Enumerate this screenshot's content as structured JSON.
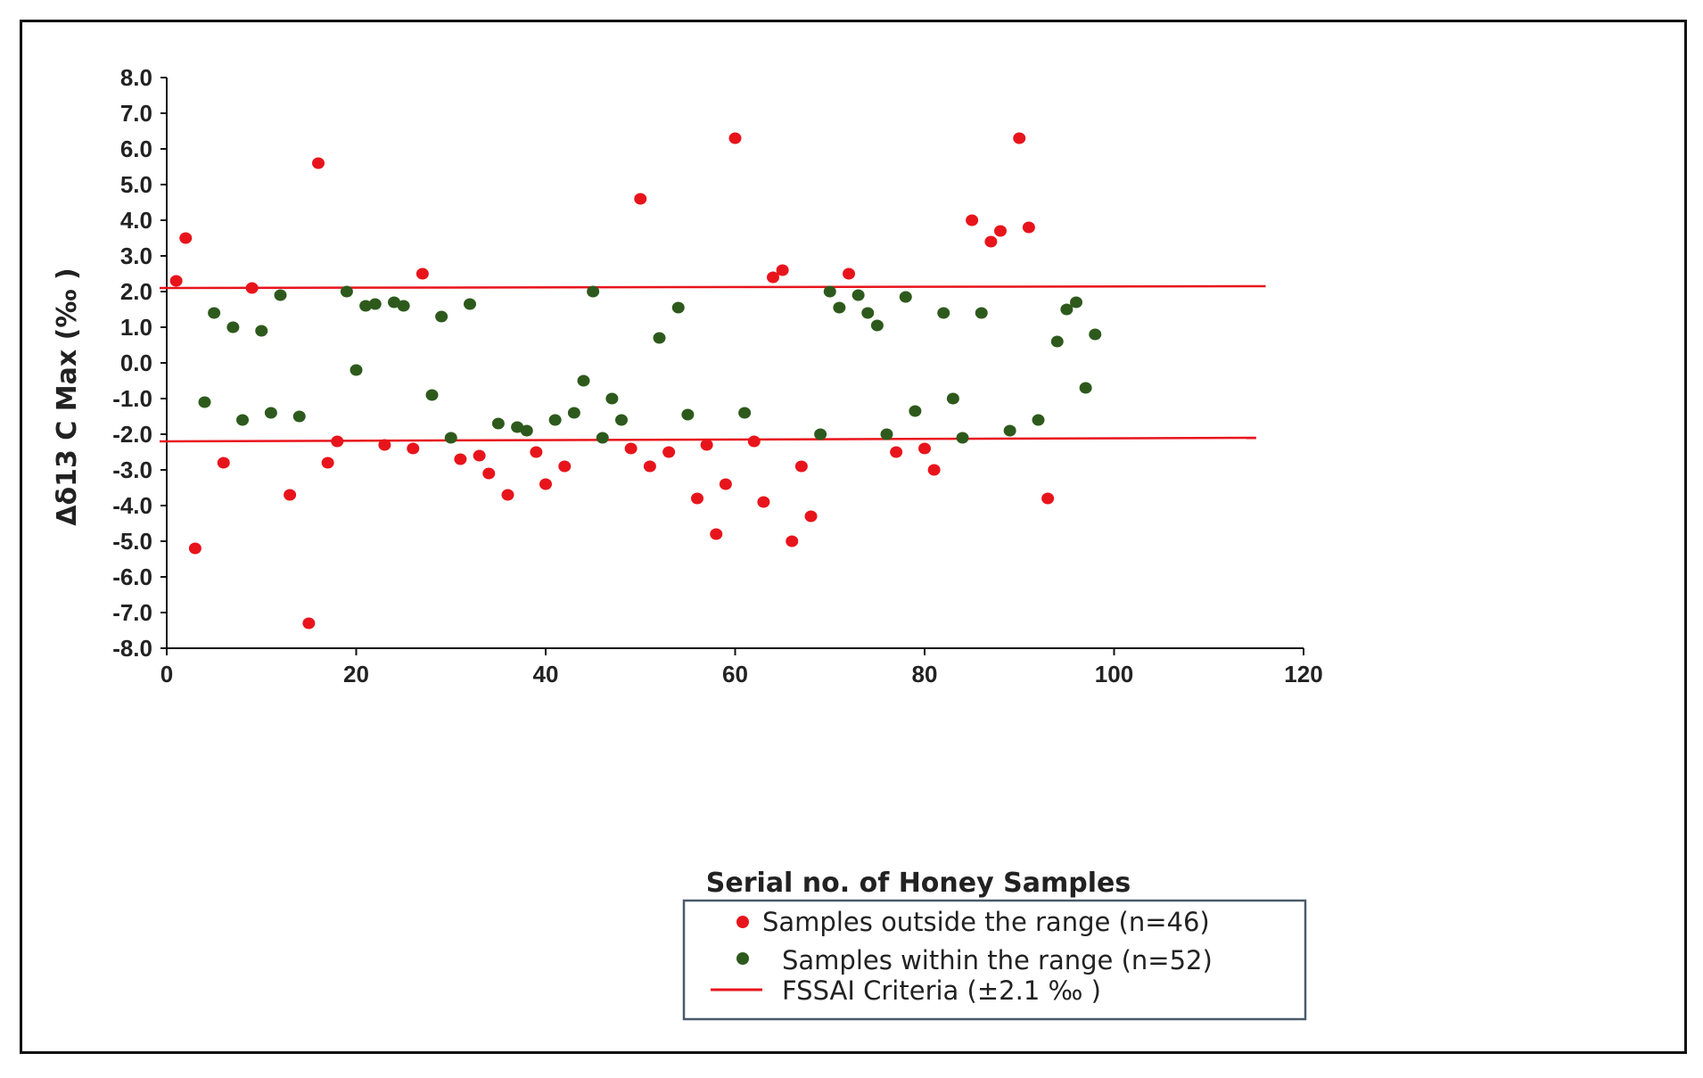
{
  "chart_data": {
    "type": "scatter",
    "title": "",
    "xlabel": "Serial no. of Honey Samples",
    "ylabel": "Δδ13 C Max (‰ )",
    "xlim": [
      0,
      120
    ],
    "ylim": [
      -8,
      8
    ],
    "x_ticks": [
      "0",
      "20",
      "40",
      "60",
      "80",
      "100",
      "120"
    ],
    "y_ticks": [
      "8.0",
      "7.0",
      "6.0",
      "5.0",
      "4.0",
      "3.0",
      "2.0",
      "1.0",
      "0.0",
      "-1.0",
      "-2.0",
      "-3.0",
      "-4.0",
      "-5.0",
      "-6.0",
      "-7.0",
      "-8.0"
    ],
    "grid": false,
    "legend_position": "bottom-center",
    "series": [
      {
        "name": "Samples outside the range (n=46)",
        "color": "#e8141b",
        "points": [
          [
            1,
            2.3
          ],
          [
            2,
            3.5
          ],
          [
            3,
            -5.2
          ],
          [
            6,
            -2.8
          ],
          [
            9,
            2.1
          ],
          [
            13,
            -3.7
          ],
          [
            15,
            -7.3
          ],
          [
            16,
            5.6
          ],
          [
            17,
            -2.8
          ],
          [
            18,
            -2.2
          ],
          [
            23,
            -2.3
          ],
          [
            26,
            -2.4
          ],
          [
            27,
            2.5
          ],
          [
            31,
            -2.7
          ],
          [
            33,
            -2.6
          ],
          [
            34,
            -3.1
          ],
          [
            36,
            -3.7
          ],
          [
            39,
            -2.5
          ],
          [
            40,
            -3.4
          ],
          [
            42,
            -2.9
          ],
          [
            49,
            -2.4
          ],
          [
            50,
            4.6
          ],
          [
            51,
            -2.9
          ],
          [
            53,
            -2.5
          ],
          [
            56,
            -3.8
          ],
          [
            57,
            -2.3
          ],
          [
            58,
            -4.8
          ],
          [
            59,
            -3.4
          ],
          [
            60,
            6.3
          ],
          [
            62,
            -2.2
          ],
          [
            63,
            -3.9
          ],
          [
            64,
            2.4
          ],
          [
            65,
            2.6
          ],
          [
            66,
            -5.0
          ],
          [
            67,
            -2.9
          ],
          [
            68,
            -4.3
          ],
          [
            72,
            2.5
          ],
          [
            77,
            -2.5
          ],
          [
            80,
            -2.4
          ],
          [
            81,
            -3.0
          ],
          [
            85,
            4.0
          ],
          [
            87,
            3.4
          ],
          [
            88,
            3.7
          ],
          [
            90,
            6.3
          ],
          [
            91,
            3.8
          ],
          [
            93,
            -3.8
          ]
        ]
      },
      {
        "name": "Samples within the range (n=52)",
        "color": "#2d5a1c",
        "points": [
          [
            4,
            -1.1
          ],
          [
            5,
            1.4
          ],
          [
            7,
            1.0
          ],
          [
            8,
            -1.6
          ],
          [
            10,
            0.9
          ],
          [
            11,
            -1.4
          ],
          [
            12,
            1.9
          ],
          [
            14,
            -1.5
          ],
          [
            19,
            2.0
          ],
          [
            20,
            -0.2
          ],
          [
            21,
            1.6
          ],
          [
            22,
            1.65
          ],
          [
            24,
            1.7
          ],
          [
            25,
            1.6
          ],
          [
            28,
            -0.9
          ],
          [
            29,
            1.3
          ],
          [
            30,
            -2.1
          ],
          [
            32,
            1.65
          ],
          [
            35,
            -1.7
          ],
          [
            37,
            -1.8
          ],
          [
            38,
            -1.9
          ],
          [
            41,
            -1.6
          ],
          [
            43,
            -1.4
          ],
          [
            44,
            -0.5
          ],
          [
            45,
            2.0
          ],
          [
            46,
            -2.1
          ],
          [
            47,
            -1.0
          ],
          [
            48,
            -1.6
          ],
          [
            52,
            0.7
          ],
          [
            54,
            1.55
          ],
          [
            55,
            -1.45
          ],
          [
            61,
            -1.4
          ],
          [
            69,
            -2.0
          ],
          [
            70,
            2.0
          ],
          [
            71,
            1.55
          ],
          [
            73,
            1.9
          ],
          [
            74,
            1.4
          ],
          [
            75,
            1.05
          ],
          [
            76,
            -2.0
          ],
          [
            78,
            1.85
          ],
          [
            79,
            -1.35
          ],
          [
            82,
            1.4
          ],
          [
            83,
            -1.0
          ],
          [
            84,
            -2.1
          ],
          [
            86,
            1.4
          ],
          [
            89,
            -1.9
          ],
          [
            92,
            -1.6
          ],
          [
            94,
            0.6
          ],
          [
            95,
            1.5
          ],
          [
            96,
            1.7
          ],
          [
            97,
            -0.7
          ],
          [
            98,
            0.8
          ]
        ]
      },
      {
        "name": "FSSAI Criteria (±2.1 ‰ )",
        "color": "#e8141b",
        "type": "line",
        "lines": [
          {
            "x": [
              0,
              116
            ],
            "y": [
              2.1,
              2.15
            ]
          },
          {
            "x": [
              0,
              115
            ],
            "y": [
              -2.2,
              -2.1
            ]
          }
        ]
      }
    ]
  }
}
